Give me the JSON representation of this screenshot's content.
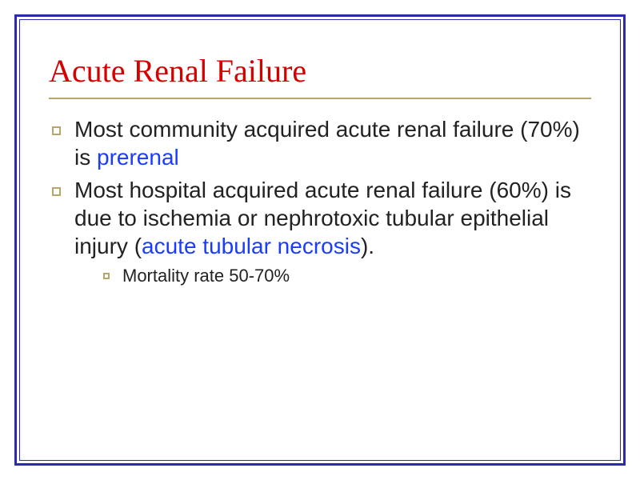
{
  "colors": {
    "frame": "#2b2bb0",
    "outer_border_width": "3px",
    "inner_border_width": "1px",
    "title_color": "#d40000",
    "title_rule_color": "#b7a66a",
    "bullet_border": "#b7a66a",
    "sub_bullet_border": "#b7a66a",
    "highlight": "#1a3cff",
    "body_text": "#222222"
  },
  "sizes": {
    "title_fontsize": "40px",
    "body_fontsize": "28px",
    "sub_fontsize": "22px"
  },
  "title": "Acute Renal Failure",
  "bullets": [
    {
      "segments": [
        {
          "text": "Most community acquired acute renal failure (70%) is ",
          "hl": false
        },
        {
          "text": "prerenal",
          "hl": true
        }
      ],
      "sub": []
    },
    {
      "segments": [
        {
          "text": "Most hospital acquired acute renal failure (60%) is due to ischemia or nephrotoxic tubular epithelial injury (",
          "hl": false
        },
        {
          "text": "acute tubular necrosis",
          "hl": true
        },
        {
          "text": ").",
          "hl": false
        }
      ],
      "sub": [
        {
          "segments": [
            {
              "text": "Mortality rate 50-70%",
              "hl": false
            }
          ]
        }
      ]
    }
  ]
}
